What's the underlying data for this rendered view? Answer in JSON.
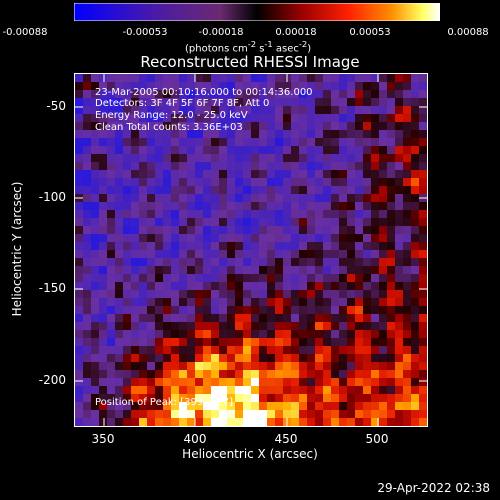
{
  "colorbar": {
    "ticks": [
      "-0.00088",
      "-0.00053",
      "-0.00018",
      "0.00018",
      "0.00053",
      "0.00088"
    ],
    "units_html": "(photons cm<sup>-2</sup> s<sup>-1</sup> asec<sup>-2</sup>)",
    "colors": [
      "#0000ff",
      "#3a1a9a",
      "#5a2a7a",
      "#000000",
      "#8a0000",
      "#ff2000",
      "#ff8000",
      "#ffff60",
      "#ffffff"
    ]
  },
  "title": "Reconstructed RHESSI Image",
  "info": {
    "time": "23-Mar-2005 00:10:16.000 to 00:14:36.000",
    "detectors": "Detectors: 3F 4F 5F 6F 7F 8F, Att 0",
    "energy": "Energy Range: 12.0 - 25.0 keV",
    "clean": "Clean     Total counts: 3.36E+03",
    "peak": "Position of Peak: [399,-227]"
  },
  "axes": {
    "xlabel": "Heliocentric X (arcsec)",
    "ylabel": "Heliocentric Y (arcsec)",
    "xticks": [
      "350",
      "400",
      "450",
      "500"
    ],
    "yticks": [
      "-50",
      "-100",
      "-150",
      "-200"
    ],
    "xlim": [
      333,
      526
    ],
    "ylim": [
      -226,
      -33
    ]
  },
  "footer": "29-Apr-2022 02:38"
}
